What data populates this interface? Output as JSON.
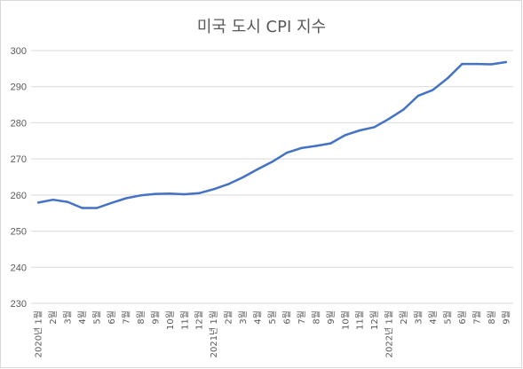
{
  "chart_data": {
    "type": "line",
    "title": "미국 도시 CPI 지수",
    "xlabel": "",
    "ylabel": "",
    "ylim": [
      230,
      300
    ],
    "yticks": [
      230,
      240,
      250,
      260,
      270,
      280,
      290,
      300
    ],
    "grid": true,
    "legend": "none",
    "line_color": "#4472C4",
    "categories": [
      "2020년 1월",
      "2월",
      "3월",
      "4월",
      "5월",
      "6월",
      "7월",
      "8월",
      "9월",
      "10월",
      "11월",
      "12월",
      "2021년 1월",
      "2월",
      "3월",
      "4월",
      "5월",
      "6월",
      "7월",
      "8월",
      "9월",
      "10월",
      "11월",
      "12월",
      "2022년 1월",
      "2월",
      "3월",
      "4월",
      "5월",
      "6월",
      "7월",
      "8월",
      "9월"
    ],
    "values": [
      257.9,
      258.7,
      258.1,
      256.4,
      256.4,
      257.8,
      259.1,
      259.9,
      260.3,
      260.4,
      260.2,
      260.5,
      261.6,
      263.0,
      264.9,
      267.1,
      269.2,
      271.7,
      273.0,
      273.6,
      274.3,
      276.6,
      277.9,
      278.8,
      281.1,
      283.7,
      287.5,
      289.1,
      292.3,
      296.3,
      296.3,
      296.2,
      296.8
    ]
  }
}
